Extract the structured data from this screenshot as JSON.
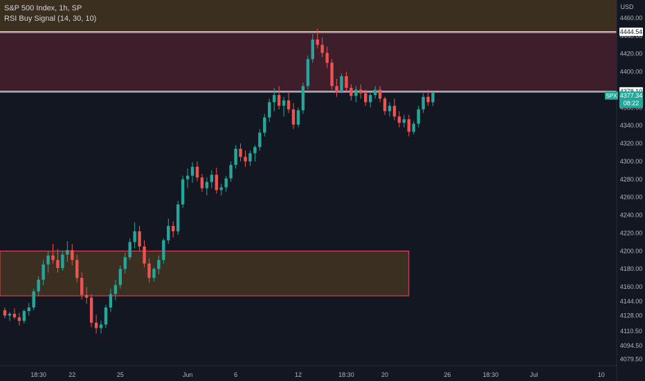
{
  "legend": {
    "symbol": "S&P 500 Index, 1h, SP",
    "indicator": "RSI Buy Signal (14, 30, 10)"
  },
  "currency": "USD",
  "colors": {
    "background": "#131722",
    "up": "#26a69a",
    "down": "#ef5350",
    "supply_zone": "#3f1f2b",
    "demand_zone": "#3d3120",
    "price_line": "#ffffff",
    "zone_border": "#f7525f",
    "price_tag": "#26a69a"
  },
  "chart_data": {
    "type": "candlestick",
    "y_axis": {
      "range": [
        4072,
        4480
      ],
      "ticks": [
        4460.0,
        4440.0,
        4420.0,
        4400.0,
        4380.0,
        4360.0,
        4340.0,
        4320.0,
        4300.0,
        4280.0,
        4260.0,
        4240.0,
        4220.0,
        4200.0,
        4180.0,
        4160.0,
        4144.0,
        4128.0,
        4110.5,
        4094.5,
        4079.5
      ],
      "tick_labels": [
        "4460.00",
        "4440.00",
        "4420.00",
        "4400.00",
        "4380.00",
        "4360.00",
        "4340.00",
        "4320.00",
        "4300.00",
        "4280.00",
        "4260.00",
        "4240.00",
        "4220.00",
        "4200.00",
        "4180.00",
        "4160.00",
        "4144.00",
        "4128.00",
        "4110.50",
        "4094.50",
        "4079.50"
      ]
    },
    "x_axis": {
      "ticks": [
        {
          "label": "18:30",
          "index": 7
        },
        {
          "label": "22",
          "index": 14
        },
        {
          "label": "25",
          "index": 24
        },
        {
          "label": "Jun",
          "index": 38
        },
        {
          "label": "6",
          "index": 48
        },
        {
          "label": "12",
          "index": 61
        },
        {
          "label": "18:30",
          "index": 71
        },
        {
          "label": "20",
          "index": 79
        },
        {
          "label": "26",
          "index": 92
        },
        {
          "label": "18:30",
          "index": 101
        },
        {
          "label": "Jul",
          "index": 110
        },
        {
          "label": "10",
          "index": 124
        }
      ]
    },
    "candles": [
      [
        4134,
        4137,
        4125,
        4128
      ],
      [
        4128,
        4132,
        4122,
        4130
      ],
      [
        4130,
        4136,
        4124,
        4126
      ],
      [
        4126,
        4131,
        4117,
        4122
      ],
      [
        4122,
        4135,
        4119,
        4133
      ],
      [
        4133,
        4142,
        4128,
        4137
      ],
      [
        4137,
        4158,
        4134,
        4155
      ],
      [
        4155,
        4172,
        4150,
        4168
      ],
      [
        4168,
        4190,
        4162,
        4185
      ],
      [
        4185,
        4200,
        4176,
        4195
      ],
      [
        4195,
        4208,
        4186,
        4190
      ],
      [
        4190,
        4202,
        4176,
        4181
      ],
      [
        4181,
        4200,
        4178,
        4196
      ],
      [
        4196,
        4211,
        4188,
        4201
      ],
      [
        4201,
        4208,
        4184,
        4190
      ],
      [
        4190,
        4196,
        4165,
        4170
      ],
      [
        4170,
        4176,
        4146,
        4151
      ],
      [
        4151,
        4160,
        4141,
        4148
      ],
      [
        4148,
        4152,
        4115,
        4120
      ],
      [
        4120,
        4129,
        4108,
        4114
      ],
      [
        4114,
        4122,
        4108,
        4118
      ],
      [
        4118,
        4140,
        4114,
        4137
      ],
      [
        4137,
        4158,
        4132,
        4152
      ],
      [
        4152,
        4168,
        4145,
        4162
      ],
      [
        4162,
        4184,
        4158,
        4180
      ],
      [
        4180,
        4198,
        4175,
        4193
      ],
      [
        4193,
        4214,
        4190,
        4210
      ],
      [
        4210,
        4232,
        4203,
        4222
      ],
      [
        4222,
        4228,
        4200,
        4205
      ],
      [
        4205,
        4212,
        4182,
        4186
      ],
      [
        4186,
        4192,
        4165,
        4170
      ],
      [
        4170,
        4182,
        4166,
        4180
      ],
      [
        4180,
        4195,
        4174,
        4190
      ],
      [
        4190,
        4214,
        4186,
        4212
      ],
      [
        4212,
        4236,
        4208,
        4228
      ],
      [
        4228,
        4233,
        4215,
        4222
      ],
      [
        4222,
        4256,
        4218,
        4252
      ],
      [
        4252,
        4284,
        4248,
        4280
      ],
      [
        4280,
        4292,
        4270,
        4284
      ],
      [
        4284,
        4299,
        4276,
        4294
      ],
      [
        4294,
        4300,
        4278,
        4282
      ],
      [
        4282,
        4286,
        4266,
        4270
      ],
      [
        4270,
        4282,
        4262,
        4277
      ],
      [
        4277,
        4290,
        4270,
        4285
      ],
      [
        4285,
        4293,
        4264,
        4268
      ],
      [
        4268,
        4275,
        4262,
        4271
      ],
      [
        4271,
        4284,
        4266,
        4281
      ],
      [
        4281,
        4300,
        4277,
        4296
      ],
      [
        4296,
        4318,
        4292,
        4314
      ],
      [
        4314,
        4320,
        4300,
        4305
      ],
      [
        4305,
        4312,
        4294,
        4300
      ],
      [
        4300,
        4312,
        4295,
        4309
      ],
      [
        4309,
        4318,
        4300,
        4316
      ],
      [
        4316,
        4336,
        4312,
        4332
      ],
      [
        4332,
        4353,
        4328,
        4349
      ],
      [
        4349,
        4370,
        4344,
        4366
      ],
      [
        4366,
        4382,
        4356,
        4374
      ],
      [
        4374,
        4384,
        4358,
        4362
      ],
      [
        4362,
        4372,
        4350,
        4368
      ],
      [
        4368,
        4378,
        4354,
        4358
      ],
      [
        4358,
        4365,
        4336,
        4341
      ],
      [
        4341,
        4360,
        4338,
        4357
      ],
      [
        4357,
        4388,
        4353,
        4384
      ],
      [
        4384,
        4418,
        4380,
        4414
      ],
      [
        4414,
        4442,
        4410,
        4436
      ],
      [
        4436,
        4448,
        4426,
        4430
      ],
      [
        4430,
        4438,
        4416,
        4421
      ],
      [
        4421,
        4428,
        4404,
        4410
      ],
      [
        4410,
        4414,
        4380,
        4384
      ],
      [
        4384,
        4392,
        4372,
        4378
      ],
      [
        4378,
        4398,
        4376,
        4395
      ],
      [
        4395,
        4400,
        4378,
        4382
      ],
      [
        4382,
        4386,
        4368,
        4373
      ],
      [
        4373,
        4384,
        4366,
        4380
      ],
      [
        4380,
        4386,
        4370,
        4376
      ],
      [
        4376,
        4380,
        4362,
        4366
      ],
      [
        4366,
        4378,
        4360,
        4374
      ],
      [
        4374,
        4384,
        4370,
        4380
      ],
      [
        4380,
        4384,
        4366,
        4370
      ],
      [
        4370,
        4372,
        4352,
        4356
      ],
      [
        4356,
        4366,
        4350,
        4362
      ],
      [
        4362,
        4370,
        4346,
        4350
      ],
      [
        4350,
        4356,
        4338,
        4343
      ],
      [
        4343,
        4352,
        4338,
        4347
      ],
      [
        4347,
        4352,
        4328,
        4333
      ],
      [
        4333,
        4345,
        4330,
        4342
      ],
      [
        4342,
        4362,
        4338,
        4358
      ],
      [
        4358,
        4376,
        4354,
        4372
      ],
      [
        4372,
        4380,
        4362,
        4366
      ],
      [
        4366,
        4378,
        4362,
        4377
      ]
    ],
    "zones": [
      {
        "name": "supply",
        "from": 4378.1,
        "to": 4444.54,
        "x_start": 0,
        "x_end": "right"
      },
      {
        "name": "top-band",
        "from": 4444.54,
        "to": 4480,
        "x_start": 0,
        "x_end": "right"
      },
      {
        "name": "demand",
        "from": 4150,
        "to": 4200,
        "x_start": 0,
        "x_end_index": 84
      }
    ],
    "levels": [
      {
        "value": 4444.54,
        "label": "4444.54"
      },
      {
        "value": 4378.1,
        "label": "4378.10"
      }
    ],
    "price_tag": {
      "symbol": "SPX",
      "value": 4377.34,
      "label": "4377.34",
      "countdown": "08:22"
    }
  }
}
